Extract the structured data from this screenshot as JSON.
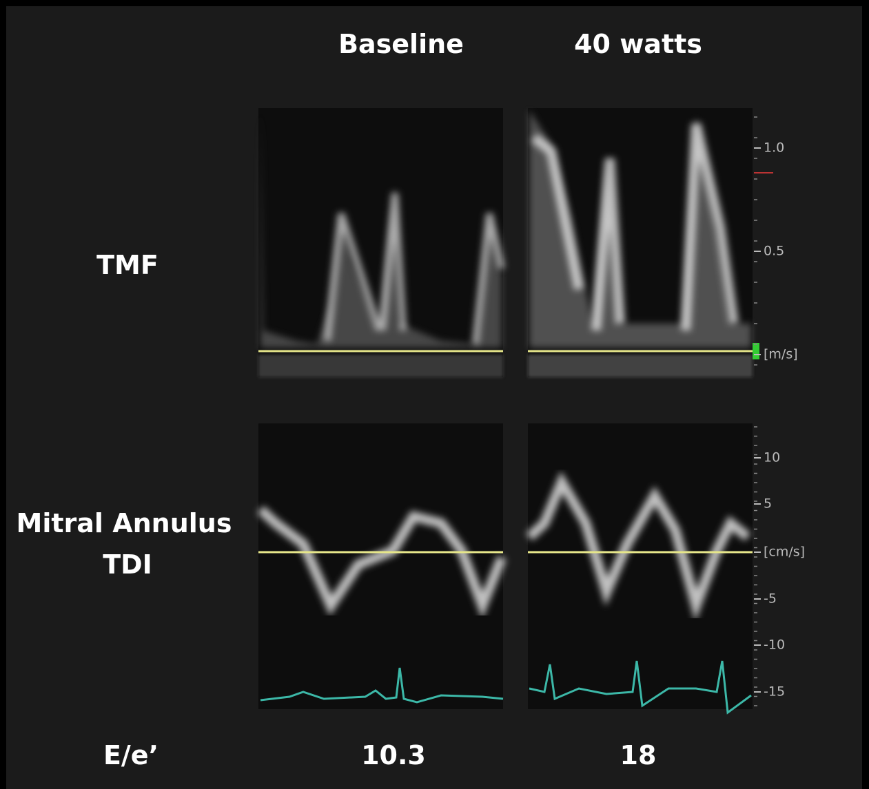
{
  "columns": [
    "Baseline",
    "40 watts"
  ],
  "rows": [
    {
      "label": [
        "TMF"
      ]
    },
    {
      "label": [
        "Mitral Annulus",
        "TDI"
      ]
    }
  ],
  "tmf_scale": [
    "1.0",
    "0.5",
    "[m/s]"
  ],
  "tdi_scale": [
    "10",
    "5",
    "[cm/s]",
    "-5",
    "-10",
    "-15"
  ],
  "ratio": {
    "label": "E/e’",
    "values": [
      "10.3",
      "18"
    ]
  }
}
